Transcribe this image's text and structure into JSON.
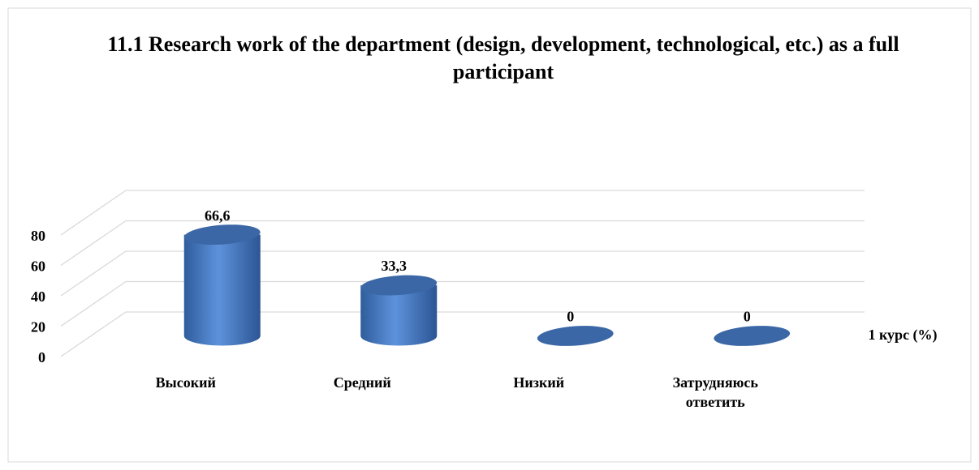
{
  "chart_data": {
    "type": "bar3d",
    "title": "11.1 Research work of the department (design, development, technological, etc.) as a full participant",
    "categories": [
      "Высокий",
      "Средний",
      "Низкий",
      "Затрудняюсь ответить"
    ],
    "series": [
      {
        "name": "1 курс (%)",
        "color": "#4f81bd",
        "values": [
          66.6,
          33.3,
          0,
          0
        ],
        "value_labels": [
          "66,6",
          "33,3",
          "0",
          "0"
        ]
      }
    ],
    "ylim": [
      0,
      80
    ],
    "yticks": [
      0,
      20,
      40,
      60,
      80
    ],
    "grid": true
  }
}
